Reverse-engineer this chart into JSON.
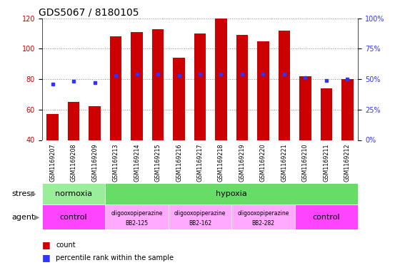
{
  "title": "GDS5067 / 8180105",
  "samples": [
    "GSM1169207",
    "GSM1169208",
    "GSM1169209",
    "GSM1169213",
    "GSM1169214",
    "GSM1169215",
    "GSM1169216",
    "GSM1169217",
    "GSM1169218",
    "GSM1169219",
    "GSM1169220",
    "GSM1169221",
    "GSM1169210",
    "GSM1169211",
    "GSM1169212"
  ],
  "counts": [
    57,
    65,
    62,
    108,
    111,
    113,
    94,
    110,
    120,
    109,
    105,
    112,
    82,
    74,
    80
  ],
  "percentiles": [
    46,
    48,
    47,
    53,
    54,
    54,
    53,
    54,
    54,
    54,
    54,
    54,
    51,
    49,
    50
  ],
  "ylim_left": [
    40,
    120
  ],
  "ylim_right": [
    0,
    100
  ],
  "yticks_left": [
    40,
    60,
    80,
    100,
    120
  ],
  "yticks_right": [
    0,
    25,
    50,
    75,
    100
  ],
  "bar_color": "#cc0000",
  "dot_color": "#3333ff",
  "stress_normoxia_color": "#99ee99",
  "stress_hypoxia_color": "#66dd66",
  "agent_control_color": "#ff44ff",
  "agent_oligo_color": "#ffaaff",
  "background_color": "#ffffff",
  "xticklabel_bg": "#cccccc",
  "grid_color": "#888888",
  "title_fontsize": 10,
  "tick_fontsize": 7,
  "label_fontsize": 7,
  "stress_groups": [
    {
      "label": "normoxia",
      "start": 0,
      "end": 3
    },
    {
      "label": "hypoxia",
      "start": 3,
      "end": 15
    }
  ],
  "agent_groups": [
    {
      "label": "control",
      "start": 0,
      "end": 3,
      "type": "control"
    },
    {
      "label": "oligooxopiperazine\nBB2-125",
      "start": 3,
      "end": 6,
      "type": "oligo"
    },
    {
      "label": "oligooxopiperazine\nBB2-162",
      "start": 6,
      "end": 9,
      "type": "oligo"
    },
    {
      "label": "oligooxopiperazine\nBB2-282",
      "start": 9,
      "end": 12,
      "type": "oligo"
    },
    {
      "label": "control",
      "start": 12,
      "end": 15,
      "type": "control"
    }
  ]
}
